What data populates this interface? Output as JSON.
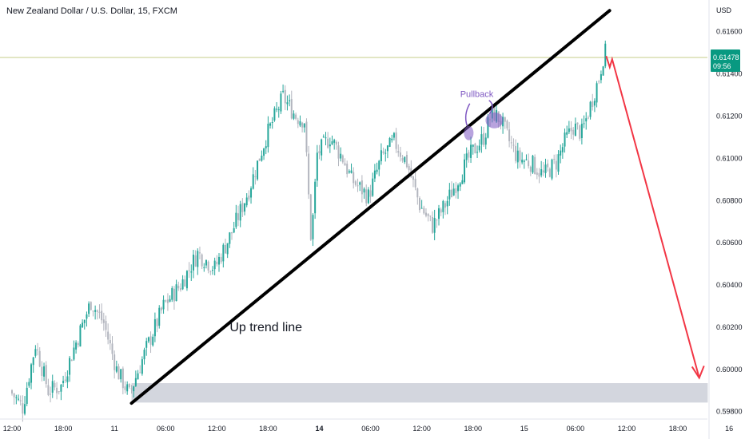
{
  "header": {
    "title": "New Zealand Dollar / U.S. Dollar, 15, FXCM"
  },
  "price_badge": {
    "price": "0.61478",
    "countdown": "09:56",
    "color": "#089981"
  },
  "colors": {
    "up": "#26a69a",
    "down": "#b2b5be",
    "trendline": "#000000",
    "arrow": "#f23645",
    "zone": "#d1d4dc",
    "pullback": "#7e57c2",
    "price_line": "#c5cc8a"
  },
  "chart_data": {
    "type": "candlestick",
    "title": "New Zealand Dollar / U.S. Dollar, 15, FXCM",
    "ylabel": "USD",
    "ylim": [
      0.5978,
      0.6172
    ],
    "y_ticks": [
      "0.61600",
      "0.61400",
      "0.61200",
      "0.61000",
      "0.60800",
      "0.60600",
      "0.60400",
      "0.60200",
      "0.60000",
      "0.59800"
    ],
    "y_tick_values": [
      0.616,
      0.614,
      0.612,
      0.61,
      0.608,
      0.606,
      0.604,
      0.602,
      0.6,
      0.598
    ],
    "x_ticks": [
      {
        "label": "12:00",
        "hours": 0,
        "bold": false
      },
      {
        "label": "18:00",
        "hours": 6,
        "bold": false
      },
      {
        "label": "11",
        "hours": 12,
        "bold": false
      },
      {
        "label": "06:00",
        "hours": 18,
        "bold": false
      },
      {
        "label": "12:00",
        "hours": 24,
        "bold": false
      },
      {
        "label": "18:00",
        "hours": 30,
        "bold": false
      },
      {
        "label": "14",
        "hours": 36,
        "bold": true
      },
      {
        "label": "06:00",
        "hours": 42,
        "bold": false
      },
      {
        "label": "12:00",
        "hours": 48,
        "bold": false
      },
      {
        "label": "18:00",
        "hours": 54,
        "bold": false
      },
      {
        "label": "15",
        "hours": 60,
        "bold": false
      },
      {
        "label": "06:00",
        "hours": 66,
        "bold": false
      },
      {
        "label": "12:00",
        "hours": 72,
        "bold": false
      },
      {
        "label": "18:00",
        "hours": 78,
        "bold": false
      },
      {
        "label": "16",
        "hours": 84,
        "bold": false
      }
    ],
    "price_path": [
      [
        0.0,
        0.599
      ],
      [
        1.5,
        0.5982
      ],
      [
        3.0,
        0.6012
      ],
      [
        4.5,
        0.599
      ],
      [
        6.0,
        0.5992
      ],
      [
        7.5,
        0.601
      ],
      [
        9.5,
        0.6032
      ],
      [
        11.0,
        0.6022
      ],
      [
        12.5,
        0.6
      ],
      [
        14.0,
        0.5988
      ],
      [
        16.0,
        0.601
      ],
      [
        18.0,
        0.603
      ],
      [
        20.0,
        0.604
      ],
      [
        22.0,
        0.6055
      ],
      [
        24.0,
        0.6048
      ],
      [
        26.0,
        0.6065
      ],
      [
        28.0,
        0.6085
      ],
      [
        30.0,
        0.611
      ],
      [
        32.0,
        0.6129
      ],
      [
        33.5,
        0.612
      ],
      [
        34.5,
        0.6118
      ],
      [
        35.3,
        0.606
      ],
      [
        36.0,
        0.6102
      ],
      [
        37.5,
        0.611
      ],
      [
        39.0,
        0.61
      ],
      [
        40.0,
        0.609
      ],
      [
        42.0,
        0.6082
      ],
      [
        43.5,
        0.61
      ],
      [
        45.0,
        0.6108
      ],
      [
        46.5,
        0.6098
      ],
      [
        48.0,
        0.6078
      ],
      [
        49.5,
        0.6068
      ],
      [
        51.0,
        0.6078
      ],
      [
        52.5,
        0.609
      ],
      [
        54.0,
        0.6102
      ],
      [
        55.5,
        0.611
      ],
      [
        56.5,
        0.6122
      ],
      [
        57.5,
        0.6118
      ],
      [
        58.5,
        0.6108
      ],
      [
        59.5,
        0.61
      ],
      [
        61.0,
        0.6098
      ],
      [
        62.5,
        0.6092
      ],
      [
        64.0,
        0.6098
      ],
      [
        65.0,
        0.6108
      ],
      [
        66.0,
        0.6115
      ],
      [
        67.0,
        0.6112
      ],
      [
        68.0,
        0.6125
      ],
      [
        69.0,
        0.6138
      ],
      [
        69.6,
        0.615
      ]
    ],
    "trend_line": {
      "start": [
        14.0,
        0.5984
      ],
      "end": [
        70.0,
        0.617
      ]
    },
    "projection_arrow": {
      "start": [
        69.6,
        0.615
      ],
      "mid": [
        70.3,
        0.6147
      ],
      "end": [
        80.5,
        0.5996
      ]
    },
    "support_zone": {
      "hours": [
        14.0,
        81.5
      ],
      "price": [
        0.59843,
        0.59935
      ]
    },
    "pullback_points": [
      [
        53.5,
        0.6112
      ],
      [
        56.5,
        0.6118
      ]
    ],
    "annotations": [
      {
        "text": "Up trend line",
        "hours": 25.5,
        "price": 0.6018
      },
      {
        "text": "Pullback",
        "hours": 52.5,
        "price": 0.6129
      }
    ]
  }
}
